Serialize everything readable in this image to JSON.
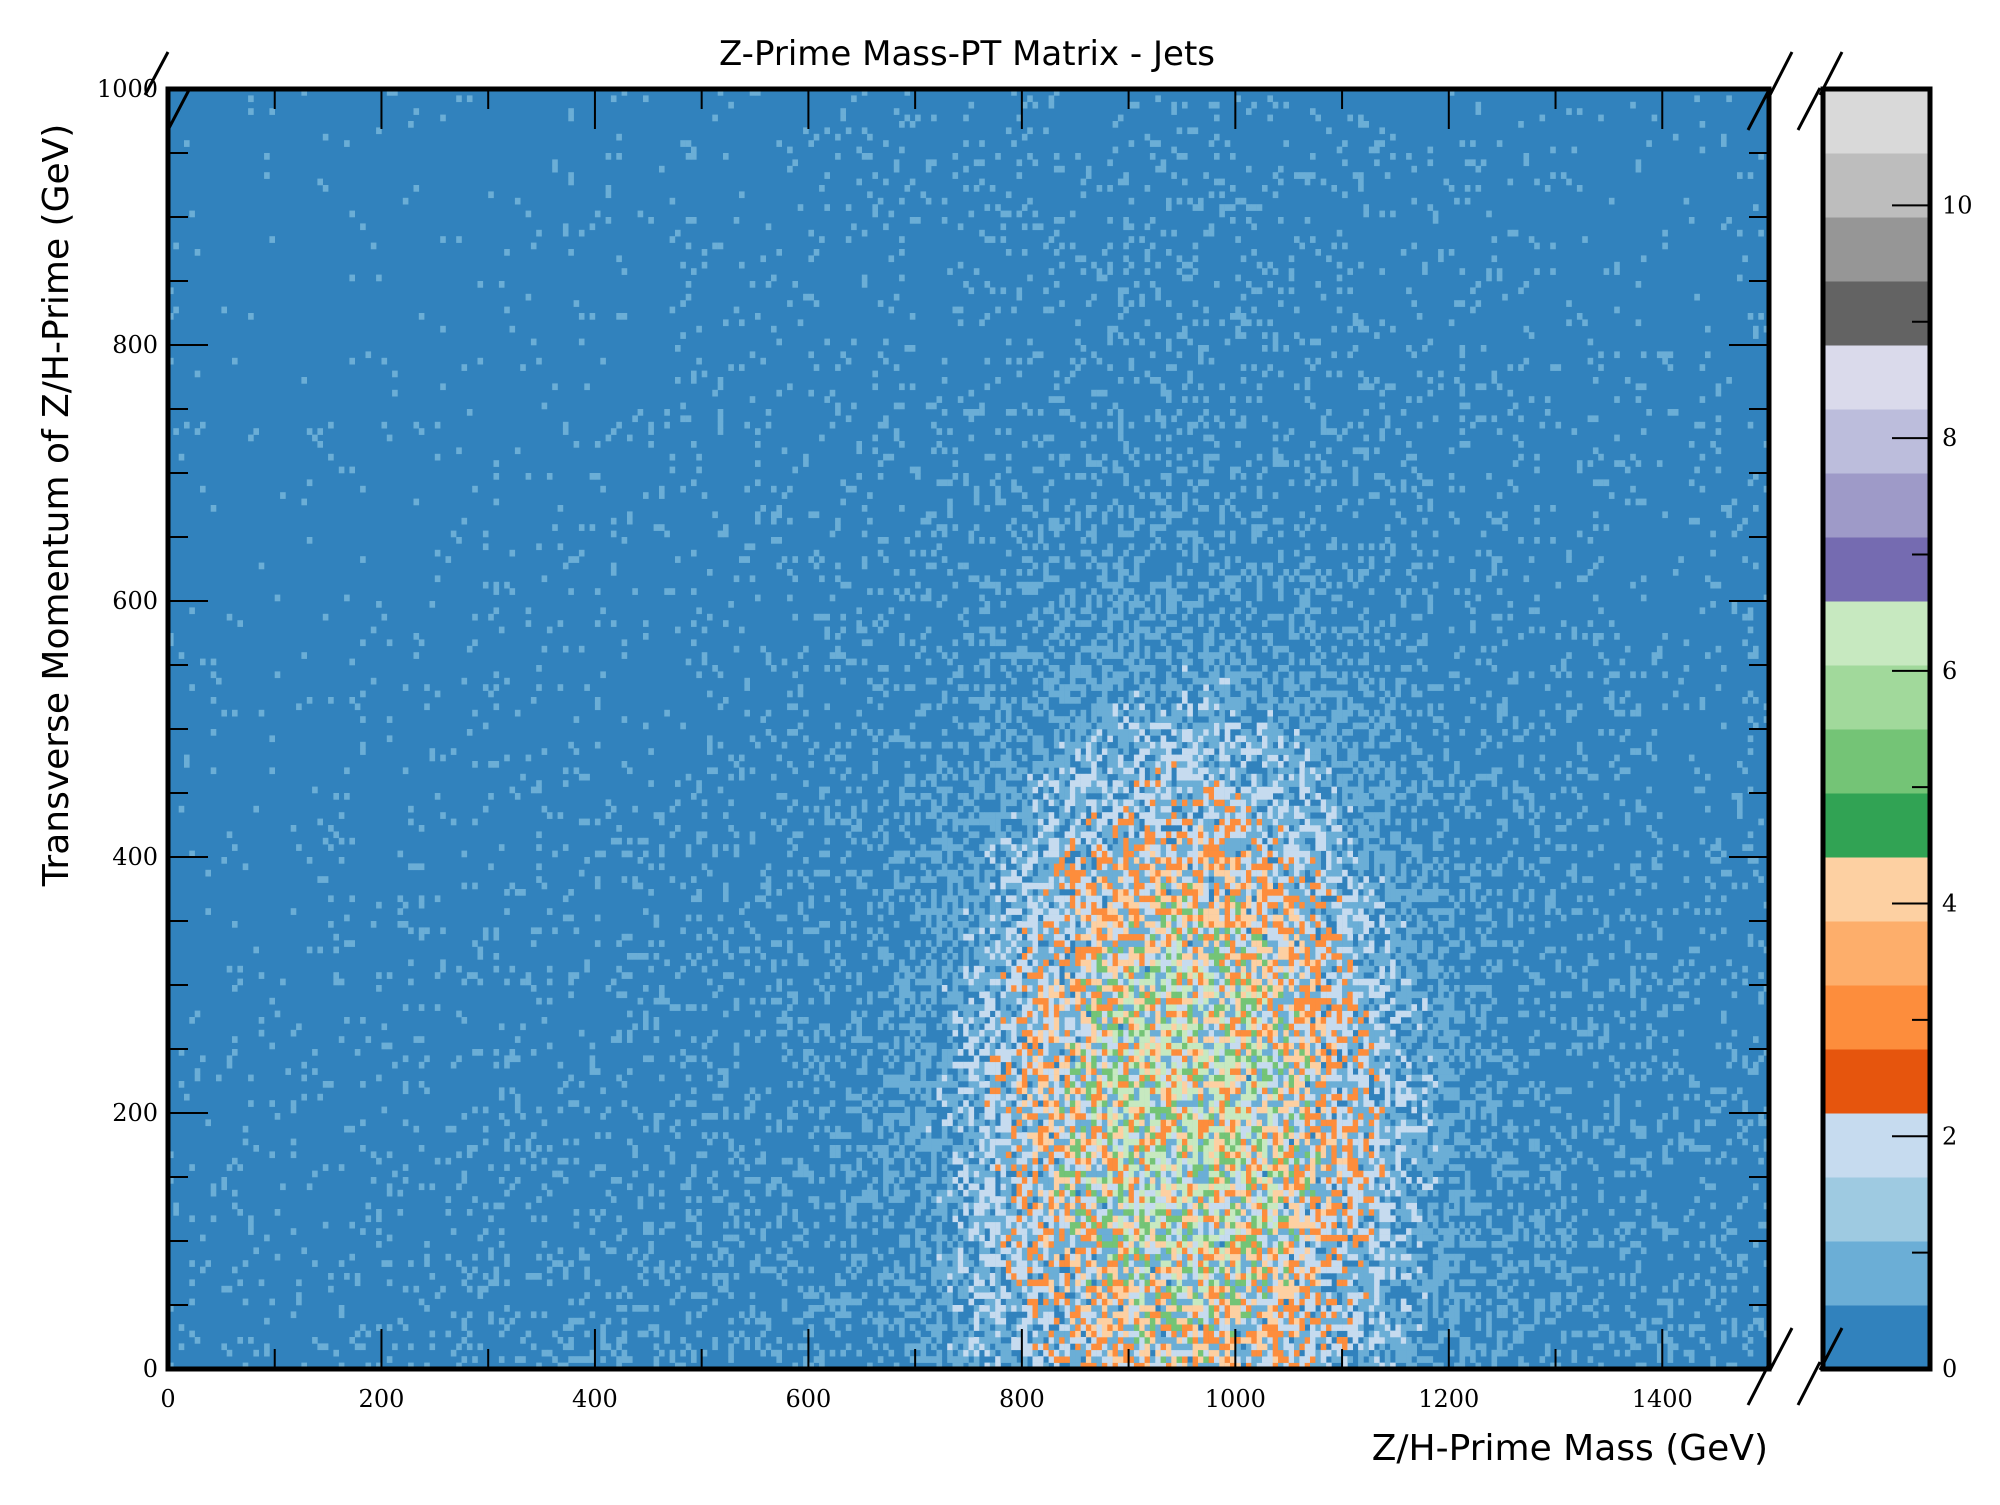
{
  "chart_data": {
    "type": "heatmap",
    "title": "Z-Prime Mass-PT Matrix - Jets",
    "xlabel": "Z/H-Prime Mass (GeV)",
    "ylabel": "Transverse Momentum of Z/H-Prime (GeV)",
    "xlim": [
      0,
      1500
    ],
    "ylim": [
      0,
      1000
    ],
    "x_ticks": [
      "0",
      "200",
      "400",
      "600",
      "800",
      "1000",
      "1200",
      "1400"
    ],
    "y_ticks": [
      "0",
      "200",
      "400",
      "600",
      "800",
      "1000"
    ],
    "colorbar": {
      "range": [
        0,
        11
      ],
      "tick_labels": [
        "0",
        "2",
        "4",
        "6",
        "8",
        "10"
      ],
      "levels": [
        "#3182bd",
        "#6baed6",
        "#9ecae1",
        "#c6dbef",
        "#e6550d",
        "#fd8d3c",
        "#fdae6b",
        "#fdd0a2",
        "#31a354",
        "#74c476",
        "#a1d99b",
        "#c7e9c0",
        "#756bb1",
        "#9e9ac8",
        "#bcbddc",
        "#dadaeb",
        "#636363",
        "#969696",
        "#bdbdbd",
        "#d9d9d9"
      ]
    },
    "background_color": "#3182bd",
    "distribution": {
      "peak_mass": 950,
      "peak_pt": 200,
      "mass_spread": 110,
      "pt_spread": 160,
      "max_count": 6
    },
    "grid": false
  }
}
